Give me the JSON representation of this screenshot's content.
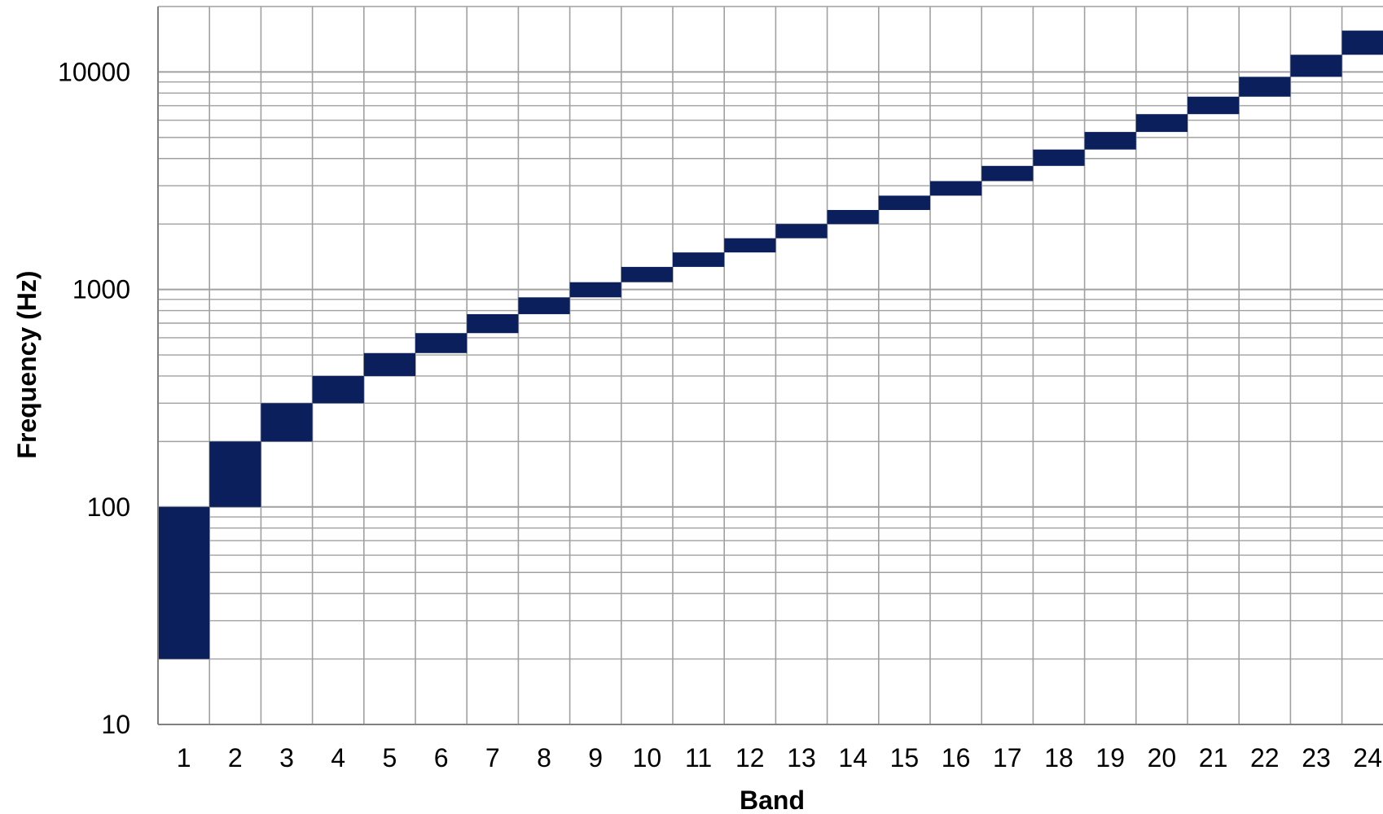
{
  "chart_data": {
    "type": "bar",
    "subtype": "floating-range",
    "title": "",
    "xlabel": "Band",
    "ylabel": "Frequency (Hz)",
    "y_scale": "log",
    "ylim": [
      10,
      20000
    ],
    "y_ticks": [
      "10",
      "100",
      "1000",
      "10000"
    ],
    "grid": true,
    "legend": "none",
    "categories": [
      "1",
      "2",
      "3",
      "4",
      "5",
      "6",
      "7",
      "8",
      "9",
      "10",
      "11",
      "12",
      "13",
      "14",
      "15",
      "16",
      "17",
      "18",
      "19",
      "20",
      "21",
      "22",
      "23",
      "24"
    ],
    "series": [
      {
        "color": "#0a1f5c",
        "ranges": [
          [
            20,
            100
          ],
          [
            100,
            200
          ],
          [
            200,
            300
          ],
          [
            300,
            400
          ],
          [
            400,
            510
          ],
          [
            510,
            630
          ],
          [
            630,
            770
          ],
          [
            770,
            920
          ],
          [
            920,
            1080
          ],
          [
            1080,
            1270
          ],
          [
            1270,
            1480
          ],
          [
            1480,
            1720
          ],
          [
            1720,
            2000
          ],
          [
            2000,
            2320
          ],
          [
            2320,
            2700
          ],
          [
            2700,
            3150
          ],
          [
            3150,
            3700
          ],
          [
            3700,
            4400
          ],
          [
            4400,
            5300
          ],
          [
            5300,
            6400
          ],
          [
            6400,
            7700
          ],
          [
            7700,
            9500
          ],
          [
            9500,
            12000
          ],
          [
            12000,
            15500
          ]
        ]
      }
    ],
    "colors": {
      "bar": "#0a1f5c",
      "grid": "#a0a0a0",
      "axis": "#808080"
    }
  }
}
